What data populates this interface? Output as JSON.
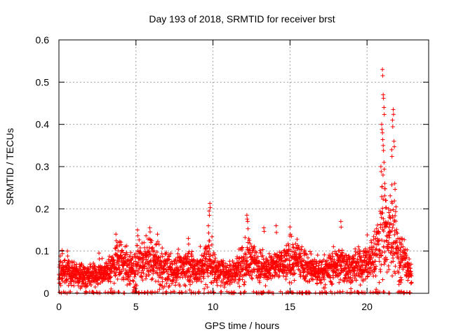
{
  "chart_data": {
    "type": "scatter",
    "title": "Day 193 of 2018, SRMTID for receiver brst",
    "xlabel": "GPS time / hours",
    "ylabel": "SRMTID / TECUs",
    "xlim": [
      0,
      24
    ],
    "ylim": [
      0,
      0.6
    ],
    "xticks": [
      0,
      5,
      10,
      15,
      20
    ],
    "yticks": [
      0,
      0.1,
      0.2,
      0.3,
      0.4,
      0.5,
      0.6
    ],
    "ytick_labels": [
      "0",
      "0.1",
      "0.2",
      "0.3",
      "0.4",
      "0.5",
      "0.6"
    ],
    "grid": true,
    "marker": "+",
    "color": "#ff0000",
    "x_data_end": 22.9,
    "x_samples_per_hour": 120,
    "series": [
      {
        "name": "SRMTID",
        "profile": [
          [
            0.0,
            0.055,
            0.035
          ],
          [
            0.5,
            0.05,
            0.03
          ],
          [
            1.0,
            0.045,
            0.03
          ],
          [
            1.5,
            0.045,
            0.03
          ],
          [
            2.0,
            0.04,
            0.025
          ],
          [
            2.5,
            0.045,
            0.025
          ],
          [
            3.0,
            0.05,
            0.025
          ],
          [
            3.5,
            0.06,
            0.04
          ],
          [
            3.8,
            0.09,
            0.05
          ],
          [
            4.0,
            0.08,
            0.05
          ],
          [
            4.5,
            0.06,
            0.045
          ],
          [
            5.0,
            0.065,
            0.05
          ],
          [
            5.5,
            0.08,
            0.05
          ],
          [
            6.0,
            0.08,
            0.05
          ],
          [
            6.5,
            0.06,
            0.045
          ],
          [
            7.0,
            0.055,
            0.04
          ],
          [
            7.5,
            0.055,
            0.035
          ],
          [
            8.0,
            0.06,
            0.04
          ],
          [
            8.5,
            0.065,
            0.045
          ],
          [
            9.0,
            0.055,
            0.04
          ],
          [
            9.5,
            0.07,
            0.05
          ],
          [
            9.8,
            0.08,
            0.06
          ],
          [
            10.0,
            0.06,
            0.04
          ],
          [
            10.5,
            0.05,
            0.03
          ],
          [
            11.0,
            0.05,
            0.03
          ],
          [
            11.5,
            0.055,
            0.035
          ],
          [
            12.0,
            0.075,
            0.05
          ],
          [
            12.5,
            0.08,
            0.05
          ],
          [
            13.0,
            0.065,
            0.04
          ],
          [
            13.5,
            0.06,
            0.035
          ],
          [
            14.0,
            0.065,
            0.035
          ],
          [
            14.5,
            0.07,
            0.04
          ],
          [
            15.0,
            0.08,
            0.05
          ],
          [
            15.5,
            0.075,
            0.045
          ],
          [
            16.0,
            0.065,
            0.04
          ],
          [
            16.5,
            0.055,
            0.035
          ],
          [
            17.0,
            0.05,
            0.03
          ],
          [
            17.5,
            0.06,
            0.035
          ],
          [
            18.0,
            0.065,
            0.04
          ],
          [
            18.5,
            0.07,
            0.045
          ],
          [
            19.0,
            0.06,
            0.035
          ],
          [
            19.5,
            0.065,
            0.04
          ],
          [
            20.0,
            0.075,
            0.045
          ],
          [
            20.5,
            0.09,
            0.06
          ],
          [
            20.9,
            0.13,
            0.1
          ],
          [
            21.0,
            0.2,
            0.15
          ],
          [
            21.3,
            0.12,
            0.08
          ],
          [
            21.5,
            0.14,
            0.1
          ],
          [
            21.8,
            0.15,
            0.12
          ],
          [
            22.0,
            0.1,
            0.07
          ],
          [
            22.3,
            0.08,
            0.05
          ],
          [
            22.6,
            0.07,
            0.04
          ],
          [
            22.9,
            0.04,
            0.02
          ]
        ],
        "spikes": [
          [
            0.2,
            0.102
          ],
          [
            0.55,
            0.1
          ],
          [
            2.6,
            0.095
          ],
          [
            3.7,
            0.14
          ],
          [
            5.1,
            0.15
          ],
          [
            5.9,
            0.155
          ],
          [
            6.4,
            0.14
          ],
          [
            8.4,
            0.13
          ],
          [
            9.75,
            0.195
          ],
          [
            9.8,
            0.213
          ],
          [
            9.7,
            0.16
          ],
          [
            12.2,
            0.185
          ],
          [
            12.25,
            0.17
          ],
          [
            13.3,
            0.155
          ],
          [
            14.1,
            0.16
          ],
          [
            15.0,
            0.157
          ],
          [
            18.3,
            0.17
          ],
          [
            20.9,
            0.3
          ],
          [
            20.95,
            0.4
          ],
          [
            21.0,
            0.53
          ],
          [
            21.05,
            0.47
          ],
          [
            21.1,
            0.44
          ],
          [
            21.0,
            0.38
          ],
          [
            21.05,
            0.35
          ],
          [
            21.1,
            0.31
          ],
          [
            21.15,
            0.26
          ],
          [
            21.2,
            0.22
          ],
          [
            21.4,
            0.2
          ],
          [
            21.45,
            0.18
          ],
          [
            21.6,
            0.34
          ],
          [
            21.65,
            0.41
          ],
          [
            21.7,
            0.435
          ],
          [
            21.75,
            0.36
          ],
          [
            21.8,
            0.26
          ],
          [
            22.2,
            0.13
          ]
        ],
        "zero_ticks": "frequent near-zero values along the x axis across the full time range"
      }
    ]
  }
}
